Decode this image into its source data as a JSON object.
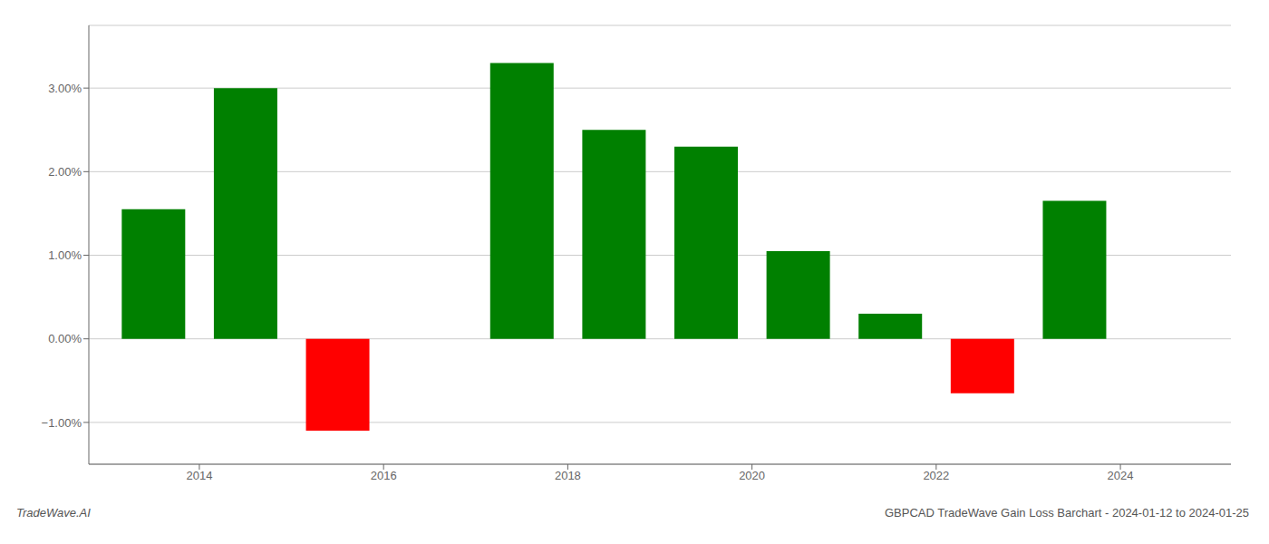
{
  "chart_data": {
    "type": "bar",
    "x": [
      2013,
      2014,
      2015,
      2017,
      2018,
      2019,
      2020,
      2021,
      2022,
      2023
    ],
    "values": [
      1.55,
      3.0,
      -1.1,
      3.3,
      2.5,
      2.3,
      1.05,
      0.3,
      -0.65,
      1.65
    ],
    "colors": [
      "#008000",
      "#008000",
      "#ff0000",
      "#008000",
      "#008000",
      "#008000",
      "#008000",
      "#008000",
      "#ff0000",
      "#008000"
    ],
    "xlim": [
      2012.3,
      2024.7
    ],
    "xticks": [
      {
        "value": 2013.5,
        "label": "2014"
      },
      {
        "value": 2015.5,
        "label": "2016"
      },
      {
        "value": 2017.5,
        "label": "2018"
      },
      {
        "value": 2019.5,
        "label": "2020"
      },
      {
        "value": 2021.5,
        "label": "2022"
      },
      {
        "value": 2023.5,
        "label": "2024"
      }
    ],
    "ylim": [
      -1.5,
      3.75
    ],
    "yticks": [
      {
        "value": -1.0,
        "label": "−1.00%"
      },
      {
        "value": 0.0,
        "label": "0.00%"
      },
      {
        "value": 1.0,
        "label": "1.00%"
      },
      {
        "value": 2.0,
        "label": "2.00%"
      },
      {
        "value": 3.0,
        "label": "3.00%"
      }
    ],
    "grid": true,
    "annotations": [
      "TradeWave.AI",
      "GBPCAD TradeWave Gain Loss Barchart - 2024-01-12 to 2024-01-25"
    ]
  }
}
